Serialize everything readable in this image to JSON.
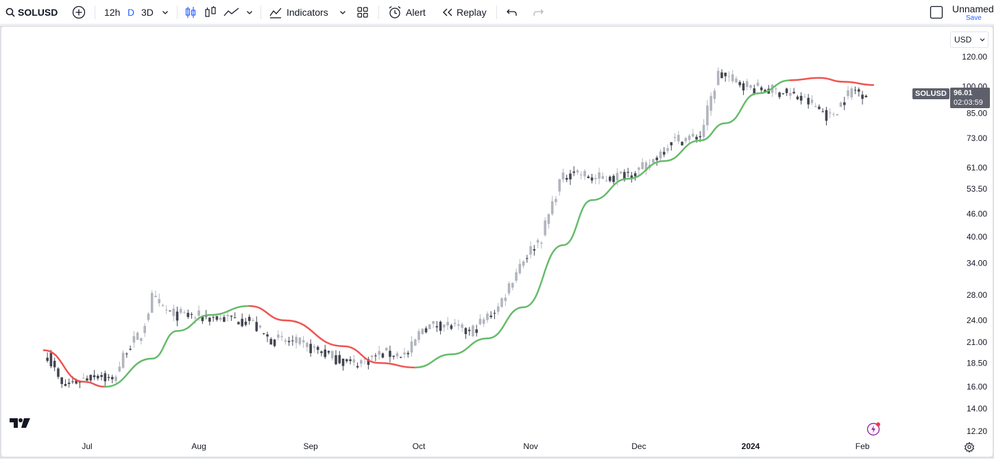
{
  "toolbar": {
    "symbol": "SOLUSD",
    "intervals": [
      "12h",
      "D",
      "3D"
    ],
    "indicators_label": "Indicators",
    "alert_label": "Alert",
    "replay_label": "Replay",
    "layout_name": "Unnamed",
    "save_label": "Save"
  },
  "chart": {
    "currency": "USD",
    "symbol_tag": "SOLUSD",
    "last_price": "96.01",
    "countdown": "02:03:59",
    "logo": "TV",
    "colors": {
      "accent": "#2962ff",
      "ma_up": "#66bb6a",
      "ma_down": "#ef5350",
      "candle_up": "#b2b5be",
      "candle_down": "#434651"
    }
  },
  "chart_data": {
    "type": "candlestick",
    "price_scale": "log",
    "ylim": [
      11.5,
      135
    ],
    "y_ticks": [
      "120.00",
      "100.00",
      "85.00",
      "73.00",
      "61.00",
      "53.50",
      "46.00",
      "40.00",
      "34.00",
      "28.00",
      "24.00",
      "21.00",
      "18.50",
      "16.00",
      "14.00",
      "12.20"
    ],
    "x_ticks": [
      "Jul",
      "Aug",
      "Sep",
      "Oct",
      "Nov",
      "Dec",
      "2024",
      "Feb"
    ],
    "series": [
      {
        "kind": "ohlc",
        "close_path": [
          {
            "date": "2023-06-20",
            "close": 19.5
          },
          {
            "date": "2023-06-24",
            "close": 16.0
          },
          {
            "date": "2023-06-30",
            "close": 16.8
          },
          {
            "date": "2023-07-04",
            "close": 17.3
          },
          {
            "date": "2023-07-08",
            "close": 16.5
          },
          {
            "date": "2023-07-12",
            "close": 20.2
          },
          {
            "date": "2023-07-16",
            "close": 22.0
          },
          {
            "date": "2023-07-19",
            "close": 27.5
          },
          {
            "date": "2023-07-24",
            "close": 25.0
          },
          {
            "date": "2023-08-01",
            "close": 24.5
          },
          {
            "date": "2023-08-08",
            "close": 24.3
          },
          {
            "date": "2023-08-15",
            "close": 24.0
          },
          {
            "date": "2023-08-20",
            "close": 21.5
          },
          {
            "date": "2023-08-29",
            "close": 20.8
          },
          {
            "date": "2023-09-05",
            "close": 19.6
          },
          {
            "date": "2023-09-12",
            "close": 18.4
          },
          {
            "date": "2023-09-16",
            "close": 18.8
          },
          {
            "date": "2023-09-21",
            "close": 19.6
          },
          {
            "date": "2023-09-28",
            "close": 19.5
          },
          {
            "date": "2023-10-02",
            "close": 23.0
          },
          {
            "date": "2023-10-08",
            "close": 23.5
          },
          {
            "date": "2023-10-15",
            "close": 22.2
          },
          {
            "date": "2023-10-23",
            "close": 26.0
          },
          {
            "date": "2023-10-29",
            "close": 34.0
          },
          {
            "date": "2023-11-04",
            "close": 40.0
          },
          {
            "date": "2023-11-09",
            "close": 56.0
          },
          {
            "date": "2023-11-13",
            "close": 60.0
          },
          {
            "date": "2023-11-18",
            "close": 57.0
          },
          {
            "date": "2023-11-24",
            "close": 57.5
          },
          {
            "date": "2023-12-03",
            "close": 61.0
          },
          {
            "date": "2023-12-10",
            "close": 72.0
          },
          {
            "date": "2023-12-18",
            "close": 74.0
          },
          {
            "date": "2023-12-23",
            "close": 108.0
          },
          {
            "date": "2024-01-02",
            "close": 99.0
          },
          {
            "date": "2024-01-10",
            "close": 97.0
          },
          {
            "date": "2024-01-18",
            "close": 90.0
          },
          {
            "date": "2024-01-23",
            "close": 83.0
          },
          {
            "date": "2024-01-29",
            "close": 98.0
          },
          {
            "date": "2024-02-02",
            "close": 96.0
          }
        ]
      },
      {
        "kind": "moving_average",
        "path": [
          {
            "date": "2023-06-19",
            "value": 20.0,
            "trend": "down"
          },
          {
            "date": "2023-06-30",
            "value": 16.5,
            "trend": "down"
          },
          {
            "date": "2023-07-06",
            "value": 16.0,
            "trend": "down"
          },
          {
            "date": "2023-07-19",
            "value": 19.0,
            "trend": "up"
          },
          {
            "date": "2023-07-26",
            "value": 22.5,
            "trend": "up"
          },
          {
            "date": "2023-08-04",
            "value": 24.8,
            "trend": "up"
          },
          {
            "date": "2023-08-15",
            "value": 26.2,
            "trend": "up"
          },
          {
            "date": "2023-08-25",
            "value": 24.0,
            "trend": "down"
          },
          {
            "date": "2023-09-10",
            "value": 20.5,
            "trend": "down"
          },
          {
            "date": "2023-09-20",
            "value": 18.5,
            "trend": "down"
          },
          {
            "date": "2023-09-30",
            "value": 18.0,
            "trend": "down"
          },
          {
            "date": "2023-10-10",
            "value": 19.5,
            "trend": "up"
          },
          {
            "date": "2023-10-20",
            "value": 21.5,
            "trend": "up"
          },
          {
            "date": "2023-10-30",
            "value": 26.0,
            "trend": "up"
          },
          {
            "date": "2023-11-10",
            "value": 38.0,
            "trend": "up"
          },
          {
            "date": "2023-11-18",
            "value": 50.0,
            "trend": "up"
          },
          {
            "date": "2023-11-28",
            "value": 57.0,
            "trend": "up"
          },
          {
            "date": "2023-12-08",
            "value": 63.5,
            "trend": "up"
          },
          {
            "date": "2023-12-18",
            "value": 72.0,
            "trend": "up"
          },
          {
            "date": "2023-12-25",
            "value": 80.0,
            "trend": "up"
          },
          {
            "date": "2024-01-03",
            "value": 96.0,
            "trend": "up"
          },
          {
            "date": "2024-01-12",
            "value": 104.0,
            "trend": "up"
          },
          {
            "date": "2024-01-20",
            "value": 105.5,
            "trend": "down"
          },
          {
            "date": "2024-01-27",
            "value": 103.0,
            "trend": "down"
          },
          {
            "date": "2024-02-04",
            "value": 101.0,
            "trend": "down"
          }
        ]
      }
    ]
  }
}
